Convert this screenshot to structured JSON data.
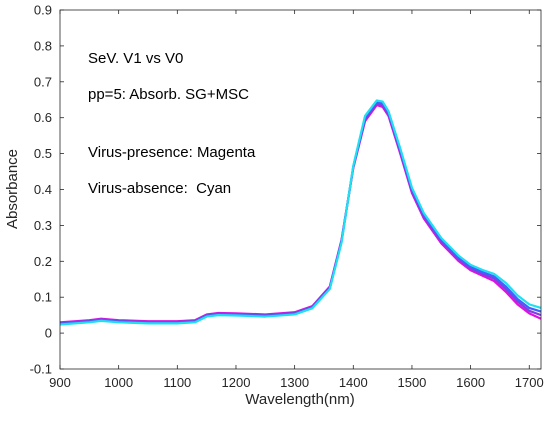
{
  "chart_data": {
    "type": "line",
    "title": "",
    "xlabel": "Wavelength(nm)",
    "ylabel": "Absorbance",
    "xlim": [
      900,
      1720
    ],
    "ylim": [
      -0.1,
      0.9
    ],
    "xticks": [
      900,
      1000,
      1100,
      1200,
      1300,
      1400,
      1500,
      1600,
      1700
    ],
    "xtick_labels": [
      "900",
      "1000",
      "1100",
      "1200",
      "1300",
      "1400",
      "1500",
      "1600",
      "1700"
    ],
    "yticks": [
      -0.1,
      0,
      0.1,
      0.2,
      0.3,
      0.4,
      0.5,
      0.6,
      0.7,
      0.8,
      0.9
    ],
    "ytick_labels": [
      "-0.1",
      "0",
      "0.1",
      "0.2",
      "0.3",
      "0.4",
      "0.5",
      "0.6",
      "0.7",
      "0.8",
      "0.9"
    ],
    "grid": false,
    "annotations": [
      "SeV. V1 vs V0",
      "pp=5: Absorb. SG+MSC",
      "Virus-presence: Magenta",
      "Virus-absence:  Cyan"
    ],
    "series_colors": {
      "magenta": "#e010e0",
      "cyan": "#20e0f0",
      "blue": "#4060ff",
      "purple": "#8040e0"
    },
    "series": [
      {
        "color_key": "magenta",
        "x": [
          900,
          950,
          970,
          1000,
          1050,
          1100,
          1130,
          1150,
          1170,
          1200,
          1250,
          1300,
          1330,
          1360,
          1380,
          1400,
          1420,
          1440,
          1450,
          1460,
          1480,
          1500,
          1520,
          1550,
          1580,
          1600,
          1620,
          1640,
          1660,
          1680,
          1700,
          1720
        ],
        "y": [
          0.03,
          0.036,
          0.04,
          0.036,
          0.033,
          0.033,
          0.036,
          0.052,
          0.056,
          0.055,
          0.052,
          0.058,
          0.075,
          0.13,
          0.26,
          0.46,
          0.59,
          0.635,
          0.63,
          0.605,
          0.5,
          0.39,
          0.32,
          0.25,
          0.2,
          0.175,
          0.16,
          0.145,
          0.115,
          0.08,
          0.055,
          0.04
        ]
      },
      {
        "color_key": "purple",
        "x": [
          900,
          950,
          970,
          1000,
          1050,
          1100,
          1130,
          1150,
          1170,
          1200,
          1250,
          1300,
          1330,
          1360,
          1380,
          1400,
          1420,
          1440,
          1450,
          1460,
          1480,
          1500,
          1520,
          1550,
          1580,
          1600,
          1620,
          1640,
          1660,
          1680,
          1700,
          1720
        ],
        "y": [
          0.028,
          0.034,
          0.038,
          0.034,
          0.031,
          0.031,
          0.034,
          0.05,
          0.054,
          0.053,
          0.05,
          0.056,
          0.073,
          0.128,
          0.258,
          0.462,
          0.595,
          0.64,
          0.635,
          0.61,
          0.505,
          0.395,
          0.325,
          0.255,
          0.205,
          0.18,
          0.165,
          0.152,
          0.123,
          0.088,
          0.062,
          0.05
        ]
      },
      {
        "color_key": "blue",
        "x": [
          900,
          950,
          970,
          1000,
          1050,
          1100,
          1130,
          1150,
          1170,
          1200,
          1250,
          1300,
          1330,
          1360,
          1380,
          1400,
          1420,
          1440,
          1450,
          1460,
          1480,
          1500,
          1520,
          1550,
          1580,
          1600,
          1620,
          1640,
          1660,
          1680,
          1700,
          1720
        ],
        "y": [
          0.026,
          0.032,
          0.036,
          0.032,
          0.029,
          0.029,
          0.032,
          0.048,
          0.052,
          0.051,
          0.048,
          0.054,
          0.071,
          0.125,
          0.255,
          0.464,
          0.6,
          0.645,
          0.64,
          0.614,
          0.51,
          0.4,
          0.33,
          0.26,
          0.21,
          0.185,
          0.17,
          0.158,
          0.13,
          0.095,
          0.07,
          0.06
        ]
      },
      {
        "color_key": "cyan",
        "x": [
          900,
          950,
          970,
          1000,
          1050,
          1100,
          1130,
          1150,
          1170,
          1200,
          1250,
          1300,
          1330,
          1360,
          1380,
          1400,
          1420,
          1440,
          1450,
          1460,
          1480,
          1500,
          1520,
          1550,
          1580,
          1600,
          1620,
          1640,
          1660,
          1680,
          1700,
          1720
        ],
        "y": [
          0.024,
          0.03,
          0.034,
          0.03,
          0.027,
          0.027,
          0.03,
          0.046,
          0.05,
          0.049,
          0.046,
          0.052,
          0.069,
          0.123,
          0.252,
          0.466,
          0.605,
          0.648,
          0.645,
          0.618,
          0.515,
          0.405,
          0.335,
          0.265,
          0.215,
          0.19,
          0.176,
          0.165,
          0.14,
          0.105,
          0.08,
          0.07
        ]
      }
    ]
  }
}
